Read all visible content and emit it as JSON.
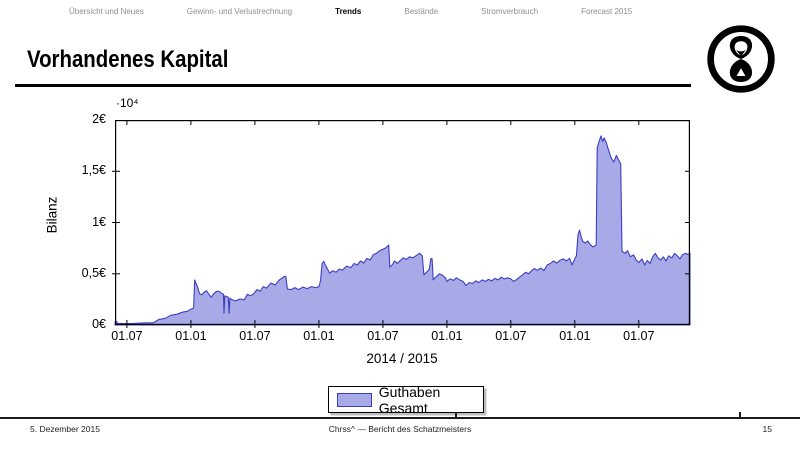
{
  "nav": {
    "items": [
      {
        "id": "uebersicht-und-neues",
        "label": "Übersicht und Neues",
        "active": false
      },
      {
        "id": "gewinn-und-verlustrechnung",
        "label": "Gewinn- und Verlustrechnung",
        "active": false
      },
      {
        "id": "trends",
        "label": "Trends",
        "active": true
      },
      {
        "id": "bestaende",
        "label": "Bestände",
        "active": false
      },
      {
        "id": "stromverbrauch",
        "label": "Stromverbrauch",
        "active": false
      },
      {
        "id": "forecast-2015",
        "label": "Forecast 2015",
        "active": false
      }
    ]
  },
  "slide": {
    "title": "Vorhandenes Kapital"
  },
  "logo": {
    "icon": "hourglass-in-circle"
  },
  "chart_data": {
    "type": "area",
    "title": "",
    "xlabel": "2014 / 2015",
    "ylabel": "Bilanz",
    "y_multiplier": "·10⁴",
    "y_unit": "€",
    "ylim": [
      0,
      2
    ],
    "y_ticks": [
      0,
      0.5,
      1,
      1.5,
      2
    ],
    "y_tick_labels": [
      "0€",
      "0,5€",
      "1€",
      "1,5€",
      "2€"
    ],
    "x_tick_labels": [
      "01.07",
      "01.01",
      "01.07",
      "01.01",
      "01.07",
      "01.01",
      "01.07",
      "01.01",
      "01.07"
    ],
    "x_tick_positions_months": [
      0,
      6,
      12,
      18,
      24,
      30,
      36,
      42,
      48
    ],
    "x_tick_dates": [
      "2011-07-01",
      "2012-01-01",
      "2012-07-01",
      "2013-01-01",
      "2013-07-01",
      "2014-01-01",
      "2014-07-01",
      "2015-01-01",
      "2015-07-01"
    ],
    "xlim_months": [
      -1.12,
      52.8
    ],
    "grid": false,
    "legend": {
      "label": "Guthaben Gesamt",
      "position": "below-chart"
    },
    "fill_color": "#a8aae8",
    "line_color": "#3c3ec0",
    "axis_color": "#000000",
    "series": [
      {
        "name": "Guthaben Gesamt",
        "unit": "10^4 EUR",
        "points": [
          [
            -1.12,
            0
          ],
          [
            -1.1,
            0.035
          ],
          [
            -0.95,
            0.035
          ],
          [
            -0.9,
            0.015
          ],
          [
            0.5,
            0.015
          ],
          [
            1.5,
            0.02
          ],
          [
            2.5,
            0.022
          ],
          [
            3.0,
            0.055
          ],
          [
            3.6,
            0.065
          ],
          [
            4.1,
            0.095
          ],
          [
            4.7,
            0.105
          ],
          [
            5.2,
            0.125
          ],
          [
            5.7,
            0.135
          ],
          [
            6.0,
            0.155
          ],
          [
            6.25,
            0.165
          ],
          [
            6.35,
            0.44
          ],
          [
            6.5,
            0.4
          ],
          [
            6.65,
            0.36
          ],
          [
            6.8,
            0.305
          ],
          [
            7.0,
            0.295
          ],
          [
            7.2,
            0.315
          ],
          [
            7.45,
            0.335
          ],
          [
            7.7,
            0.3
          ],
          [
            7.9,
            0.27
          ],
          [
            8.1,
            0.3
          ],
          [
            8.35,
            0.325
          ],
          [
            8.6,
            0.33
          ],
          [
            8.85,
            0.31
          ],
          [
            9.05,
            0.3
          ],
          [
            9.1,
            0.115
          ],
          [
            9.18,
            0.285
          ],
          [
            9.5,
            0.27
          ],
          [
            9.58,
            0.115
          ],
          [
            9.65,
            0.26
          ],
          [
            9.9,
            0.245
          ],
          [
            10.2,
            0.235
          ],
          [
            10.6,
            0.255
          ],
          [
            11.0,
            0.245
          ],
          [
            11.3,
            0.3
          ],
          [
            11.6,
            0.285
          ],
          [
            11.9,
            0.305
          ],
          [
            12.2,
            0.345
          ],
          [
            12.5,
            0.33
          ],
          [
            12.8,
            0.375
          ],
          [
            13.1,
            0.36
          ],
          [
            13.5,
            0.41
          ],
          [
            13.9,
            0.39
          ],
          [
            14.3,
            0.44
          ],
          [
            14.7,
            0.47
          ],
          [
            14.9,
            0.475
          ],
          [
            15.05,
            0.35
          ],
          [
            15.4,
            0.345
          ],
          [
            15.75,
            0.365
          ],
          [
            16.1,
            0.345
          ],
          [
            16.5,
            0.37
          ],
          [
            16.9,
            0.355
          ],
          [
            17.3,
            0.375
          ],
          [
            17.7,
            0.365
          ],
          [
            18.0,
            0.375
          ],
          [
            18.15,
            0.43
          ],
          [
            18.3,
            0.6
          ],
          [
            18.45,
            0.62
          ],
          [
            18.6,
            0.585
          ],
          [
            18.8,
            0.55
          ],
          [
            19.0,
            0.505
          ],
          [
            19.3,
            0.53
          ],
          [
            19.6,
            0.515
          ],
          [
            19.9,
            0.545
          ],
          [
            20.2,
            0.535
          ],
          [
            20.6,
            0.575
          ],
          [
            21.0,
            0.56
          ],
          [
            21.3,
            0.6
          ],
          [
            21.6,
            0.585
          ],
          [
            21.9,
            0.625
          ],
          [
            22.2,
            0.605
          ],
          [
            22.5,
            0.65
          ],
          [
            22.8,
            0.635
          ],
          [
            23.1,
            0.685
          ],
          [
            23.4,
            0.7
          ],
          [
            23.7,
            0.725
          ],
          [
            24.0,
            0.74
          ],
          [
            24.3,
            0.755
          ],
          [
            24.55,
            0.78
          ],
          [
            24.65,
            0.565
          ],
          [
            24.9,
            0.59
          ],
          [
            25.1,
            0.625
          ],
          [
            25.35,
            0.6
          ],
          [
            25.6,
            0.625
          ],
          [
            25.9,
            0.655
          ],
          [
            26.2,
            0.64
          ],
          [
            26.5,
            0.665
          ],
          [
            26.8,
            0.655
          ],
          [
            27.1,
            0.675
          ],
          [
            27.45,
            0.7
          ],
          [
            27.7,
            0.675
          ],
          [
            27.85,
            0.49
          ],
          [
            28.1,
            0.515
          ],
          [
            28.35,
            0.545
          ],
          [
            28.5,
            0.65
          ],
          [
            28.62,
            0.645
          ],
          [
            28.72,
            0.44
          ],
          [
            29.0,
            0.47
          ],
          [
            29.3,
            0.5
          ],
          [
            29.6,
            0.485
          ],
          [
            29.85,
            0.46
          ],
          [
            30.0,
            0.425
          ],
          [
            30.3,
            0.45
          ],
          [
            30.6,
            0.435
          ],
          [
            30.9,
            0.46
          ],
          [
            31.2,
            0.44
          ],
          [
            31.5,
            0.425
          ],
          [
            31.8,
            0.385
          ],
          [
            32.1,
            0.415
          ],
          [
            32.4,
            0.405
          ],
          [
            32.7,
            0.43
          ],
          [
            33.0,
            0.415
          ],
          [
            33.3,
            0.44
          ],
          [
            33.6,
            0.425
          ],
          [
            33.9,
            0.445
          ],
          [
            34.2,
            0.43
          ],
          [
            34.5,
            0.455
          ],
          [
            34.8,
            0.44
          ],
          [
            35.1,
            0.465
          ],
          [
            35.4,
            0.45
          ],
          [
            35.7,
            0.46
          ],
          [
            36.0,
            0.45
          ],
          [
            36.25,
            0.425
          ],
          [
            36.5,
            0.44
          ],
          [
            36.8,
            0.465
          ],
          [
            37.1,
            0.49
          ],
          [
            37.4,
            0.515
          ],
          [
            37.65,
            0.5
          ],
          [
            37.9,
            0.525
          ],
          [
            38.2,
            0.55
          ],
          [
            38.5,
            0.535
          ],
          [
            38.8,
            0.555
          ],
          [
            39.1,
            0.53
          ],
          [
            39.4,
            0.585
          ],
          [
            39.7,
            0.6
          ],
          [
            40.0,
            0.625
          ],
          [
            40.3,
            0.605
          ],
          [
            40.6,
            0.63
          ],
          [
            40.9,
            0.645
          ],
          [
            41.2,
            0.625
          ],
          [
            41.5,
            0.65
          ],
          [
            41.75,
            0.585
          ],
          [
            42.0,
            0.645
          ],
          [
            42.15,
            0.675
          ],
          [
            42.3,
            0.88
          ],
          [
            42.45,
            0.925
          ],
          [
            42.6,
            0.86
          ],
          [
            42.75,
            0.815
          ],
          [
            43.0,
            0.8
          ],
          [
            43.2,
            0.82
          ],
          [
            43.45,
            0.785
          ],
          [
            43.7,
            0.76
          ],
          [
            43.9,
            0.775
          ],
          [
            44.0,
            0.78
          ],
          [
            44.1,
            1.73
          ],
          [
            44.3,
            1.8
          ],
          [
            44.45,
            1.845
          ],
          [
            44.6,
            1.79
          ],
          [
            44.75,
            1.825
          ],
          [
            44.95,
            1.78
          ],
          [
            45.15,
            1.71
          ],
          [
            45.4,
            1.63
          ],
          [
            45.65,
            1.59
          ],
          [
            45.9,
            1.655
          ],
          [
            46.1,
            1.61
          ],
          [
            46.3,
            1.575
          ],
          [
            46.42,
            0.72
          ],
          [
            46.7,
            0.7
          ],
          [
            46.95,
            0.725
          ],
          [
            47.2,
            0.665
          ],
          [
            47.5,
            0.685
          ],
          [
            47.75,
            0.635
          ],
          [
            48.0,
            0.61
          ],
          [
            48.3,
            0.645
          ],
          [
            48.55,
            0.585
          ],
          [
            48.8,
            0.63
          ],
          [
            49.05,
            0.6
          ],
          [
            49.3,
            0.665
          ],
          [
            49.55,
            0.7
          ],
          [
            49.8,
            0.655
          ],
          [
            50.05,
            0.635
          ],
          [
            50.3,
            0.665
          ],
          [
            50.55,
            0.625
          ],
          [
            50.8,
            0.675
          ],
          [
            51.1,
            0.655
          ],
          [
            51.35,
            0.7
          ],
          [
            51.6,
            0.675
          ],
          [
            51.85,
            0.645
          ],
          [
            52.1,
            0.685
          ],
          [
            52.35,
            0.7
          ],
          [
            52.6,
            0.69
          ],
          [
            52.8,
            0.7
          ]
        ]
      }
    ]
  },
  "footer": {
    "date": "5. Dezember 2015",
    "center": "Chrss^ — Bericht des Schatzmeisters",
    "page": "15"
  }
}
